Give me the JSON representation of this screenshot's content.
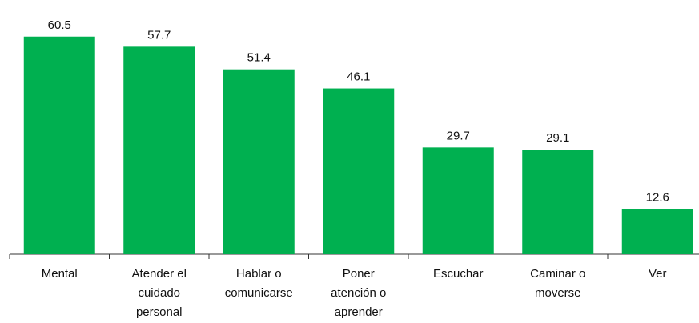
{
  "chart_data": {
    "type": "bar",
    "categories": [
      "Mental",
      "Atender el\ncuidado\npersonal",
      "Hablar o\ncomunicarse",
      "Poner\natención o\naprender",
      "Escuchar",
      "Caminar o\nmoverse",
      "Ver"
    ],
    "values": [
      60.5,
      57.7,
      51.4,
      46.1,
      29.7,
      29.1,
      12.6
    ],
    "color": "#00b050",
    "ylim": [
      0,
      68
    ]
  }
}
